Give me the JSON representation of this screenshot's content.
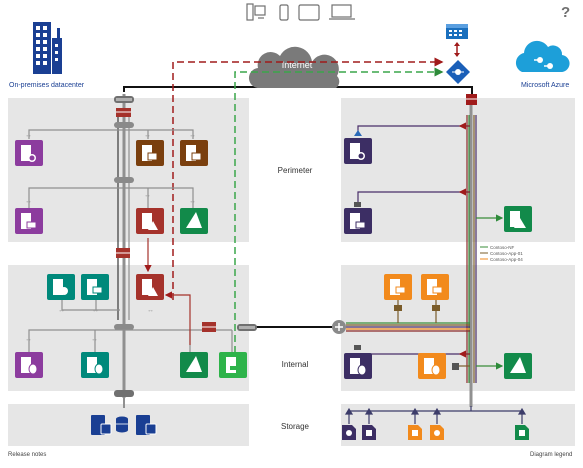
{
  "header": {
    "help_label": "?"
  },
  "labels": {
    "onprem": "On-premises datacenter",
    "azure": "Microsoft Azure",
    "internet": "Internet",
    "perimeter": "Perimeter",
    "internal": "Internal",
    "storage": "Storage"
  },
  "legend": {
    "items": [
      "Contoso-NF",
      "Contoso-App-01",
      "Contoso-App-04"
    ]
  },
  "footer": {
    "release_notes": "Release notes",
    "diagram_legend": "Diagram legend"
  },
  "colors": {
    "zone_bg": "#e6e6e6",
    "purple": "#8c3c9e",
    "dark_purple": "#3c2e64",
    "brown": "#7a3f0e",
    "orange": "#f28a1c",
    "teal": "#00897b",
    "green": "#128a4a",
    "bright_green": "#2eb34a",
    "dark_red": "#a5322b",
    "navy": "#1a3f93",
    "azure_blue": "#1d9fd9",
    "red_link": "#a01b1b",
    "green_link": "#3aa64a"
  }
}
